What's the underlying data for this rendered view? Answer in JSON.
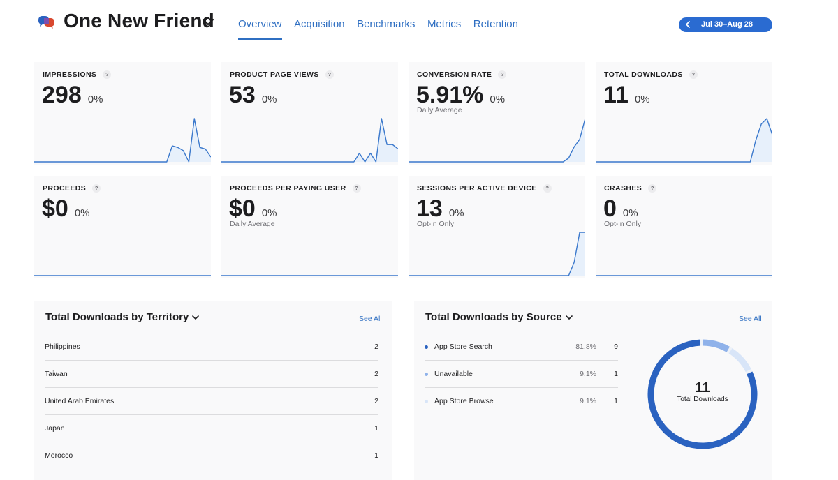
{
  "header": {
    "app_title": "One New Friend",
    "tabs": [
      {
        "label": "Overview",
        "active": true
      },
      {
        "label": "Acquisition",
        "active": false
      },
      {
        "label": "Benchmarks",
        "active": false
      },
      {
        "label": "Metrics",
        "active": false
      },
      {
        "label": "Retention",
        "active": false
      }
    ],
    "date_range": "Jul 30–Aug 28"
  },
  "colors": {
    "accent": "#2f6fc2",
    "pill": "#2a6bd1",
    "chart_line": "#3a78cc",
    "chart_fill": "#e7f0fb",
    "card_bg": "#f9f9fa",
    "source_dots": [
      "#2a62c0",
      "#8fb2ea",
      "#d8e5f8"
    ]
  },
  "icons": {
    "app": "chat-bubbles-icon",
    "title_menu": "chevron-down-icon",
    "date_back": "chevron-left-icon",
    "help": "question-mark-icon"
  },
  "metrics": [
    {
      "label": "IMPRESSIONS",
      "value": "298",
      "change": "0%",
      "sub": "",
      "help": "?",
      "trend": [
        0,
        0,
        0,
        0,
        0,
        0,
        0,
        0,
        0,
        0,
        0,
        0,
        0,
        0,
        0,
        0,
        0,
        0,
        0,
        0,
        0,
        0,
        0,
        0,
        0,
        10,
        9,
        7,
        0,
        27,
        9,
        8,
        3
      ]
    },
    {
      "label": "PRODUCT PAGE VIEWS",
      "value": "53",
      "change": "0%",
      "sub": "",
      "help": "?",
      "trend": [
        0,
        0,
        0,
        0,
        0,
        0,
        0,
        0,
        0,
        0,
        0,
        0,
        0,
        0,
        0,
        0,
        0,
        0,
        0,
        0,
        0,
        0,
        0,
        0,
        0,
        2,
        0,
        2,
        0,
        10,
        4,
        4,
        3
      ]
    },
    {
      "label": "CONVERSION RATE",
      "value": "5.91%",
      "change": "0%",
      "sub": "Daily Average",
      "help": "?",
      "trend": [
        0,
        0,
        0,
        0,
        0,
        0,
        0,
        0,
        0,
        0,
        0,
        0,
        0,
        0,
        0,
        0,
        0,
        0,
        0,
        0,
        0,
        0,
        0,
        0,
        0,
        0,
        0,
        0,
        0,
        2,
        8,
        12,
        23
      ]
    },
    {
      "label": "TOTAL DOWNLOADS",
      "value": "11",
      "change": "0%",
      "sub": "",
      "help": "?",
      "trend": [
        0,
        0,
        0,
        0,
        0,
        0,
        0,
        0,
        0,
        0,
        0,
        0,
        0,
        0,
        0,
        0,
        0,
        0,
        0,
        0,
        0,
        0,
        0,
        0,
        0,
        0,
        0,
        0,
        0,
        4,
        7,
        8,
        5
      ]
    },
    {
      "label": "PROCEEDS",
      "value": "$0",
      "change": "0%",
      "sub": "",
      "help": "?",
      "trend": [
        0,
        0,
        0,
        0,
        0,
        0,
        0,
        0,
        0,
        0,
        0,
        0,
        0,
        0,
        0,
        0,
        0,
        0,
        0,
        0,
        0,
        0,
        0,
        0,
        0,
        0,
        0,
        0,
        0,
        0,
        0,
        0,
        0
      ]
    },
    {
      "label": "PROCEEDS PER PAYING USER",
      "value": "$0",
      "change": "0%",
      "sub": "Daily Average",
      "help": "?",
      "trend": [
        0,
        0,
        0,
        0,
        0,
        0,
        0,
        0,
        0,
        0,
        0,
        0,
        0,
        0,
        0,
        0,
        0,
        0,
        0,
        0,
        0,
        0,
        0,
        0,
        0,
        0,
        0,
        0,
        0,
        0,
        0,
        0,
        0
      ]
    },
    {
      "label": "SESSIONS PER ACTIVE DEVICE",
      "value": "13",
      "change": "0%",
      "sub": "Opt-in Only",
      "help": "?",
      "trend": [
        0,
        0,
        0,
        0,
        0,
        0,
        0,
        0,
        0,
        0,
        0,
        0,
        0,
        0,
        0,
        0,
        0,
        0,
        0,
        0,
        0,
        0,
        0,
        0,
        0,
        0,
        0,
        0,
        0,
        0,
        4,
        13,
        13
      ]
    },
    {
      "label": "CRASHES",
      "value": "0",
      "change": "0%",
      "sub": "Opt-in Only",
      "help": "?",
      "trend": [
        0,
        0,
        0,
        0,
        0,
        0,
        0,
        0,
        0,
        0,
        0,
        0,
        0,
        0,
        0,
        0,
        0,
        0,
        0,
        0,
        0,
        0,
        0,
        0,
        0,
        0,
        0,
        0,
        0,
        0,
        0,
        0,
        0
      ]
    }
  ],
  "territory": {
    "title": "Total Downloads by Territory",
    "see_all": "See All",
    "rows": [
      {
        "name": "Philippines",
        "value": "2"
      },
      {
        "name": "Taiwan",
        "value": "2"
      },
      {
        "name": "United Arab Emirates",
        "value": "2"
      },
      {
        "name": "Japan",
        "value": "1"
      },
      {
        "name": "Morocco",
        "value": "1"
      }
    ]
  },
  "source": {
    "title": "Total Downloads by Source",
    "see_all": "See All",
    "rows": [
      {
        "name": "App Store Search",
        "percent": "81.8%",
        "value": "9",
        "fraction": 0.818
      },
      {
        "name": "Unavailable",
        "percent": "9.1%",
        "value": "1",
        "fraction": 0.091
      },
      {
        "name": "App Store Browse",
        "percent": "9.1%",
        "value": "1",
        "fraction": 0.091
      }
    ],
    "total": "11",
    "total_label": "Total Downloads"
  }
}
